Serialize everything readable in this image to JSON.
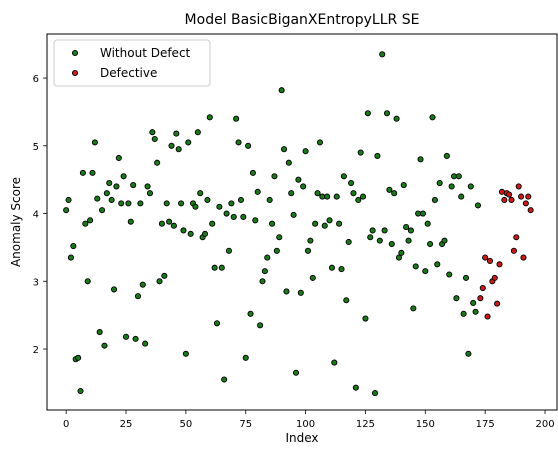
{
  "chart_data": {
    "type": "scatter",
    "title": "Model BasicBiganXEntropyLLR SE",
    "xlabel": "Index",
    "ylabel": "Anomaly Score",
    "xlim": [
      -8,
      205
    ],
    "ylim": [
      1.1,
      6.65
    ],
    "xticks": [
      0,
      25,
      50,
      75,
      100,
      125,
      150,
      175,
      200
    ],
    "yticks": [
      2,
      3,
      4,
      5,
      6
    ],
    "grid": false,
    "legend_position": "top-left",
    "series": [
      {
        "name": "Without Defect",
        "color": "#1a7a1a",
        "points": [
          [
            0,
            4.05
          ],
          [
            1,
            4.2
          ],
          [
            2,
            3.35
          ],
          [
            3,
            3.52
          ],
          [
            4,
            1.85
          ],
          [
            5,
            1.87
          ],
          [
            6,
            1.38
          ],
          [
            7,
            4.6
          ],
          [
            8,
            3.85
          ],
          [
            9,
            3.0
          ],
          [
            10,
            3.9
          ],
          [
            11,
            4.6
          ],
          [
            12,
            5.05
          ],
          [
            13,
            4.22
          ],
          [
            14,
            2.25
          ],
          [
            15,
            4.05
          ],
          [
            16,
            2.05
          ],
          [
            17,
            4.3
          ],
          [
            18,
            4.45
          ],
          [
            19,
            4.2
          ],
          [
            20,
            2.88
          ],
          [
            21,
            4.4
          ],
          [
            22,
            4.82
          ],
          [
            23,
            4.15
          ],
          [
            24,
            4.55
          ],
          [
            25,
            2.18
          ],
          [
            26,
            4.15
          ],
          [
            27,
            3.88
          ],
          [
            28,
            4.42
          ],
          [
            29,
            2.15
          ],
          [
            30,
            2.78
          ],
          [
            31,
            4.15
          ],
          [
            32,
            2.95
          ],
          [
            33,
            2.08
          ],
          [
            34,
            4.4
          ],
          [
            35,
            4.3
          ],
          [
            36,
            5.2
          ],
          [
            37,
            5.1
          ],
          [
            38,
            4.75
          ],
          [
            39,
            3.0
          ],
          [
            40,
            3.85
          ],
          [
            41,
            3.08
          ],
          [
            42,
            4.15
          ],
          [
            43,
            3.88
          ],
          [
            44,
            5.0
          ],
          [
            45,
            3.82
          ],
          [
            46,
            5.18
          ],
          [
            47,
            4.95
          ],
          [
            48,
            4.15
          ],
          [
            49,
            3.75
          ],
          [
            50,
            1.93
          ],
          [
            51,
            5.05
          ],
          [
            52,
            3.7
          ],
          [
            53,
            4.15
          ],
          [
            54,
            4.1
          ],
          [
            55,
            5.2
          ],
          [
            56,
            4.3
          ],
          [
            57,
            3.65
          ],
          [
            58,
            3.7
          ],
          [
            59,
            4.2
          ],
          [
            60,
            5.42
          ],
          [
            61,
            3.85
          ],
          [
            62,
            3.2
          ],
          [
            63,
            2.38
          ],
          [
            64,
            4.1
          ],
          [
            65,
            3.2
          ],
          [
            66,
            1.55
          ],
          [
            67,
            4.0
          ],
          [
            68,
            3.45
          ],
          [
            69,
            4.15
          ],
          [
            70,
            3.95
          ],
          [
            71,
            5.4
          ],
          [
            72,
            5.05
          ],
          [
            73,
            4.2
          ],
          [
            74,
            3.95
          ],
          [
            75,
            1.87
          ],
          [
            76,
            5.0
          ],
          [
            77,
            2.52
          ],
          [
            78,
            4.6
          ],
          [
            79,
            3.9
          ],
          [
            80,
            4.32
          ],
          [
            81,
            2.35
          ],
          [
            82,
            3.0
          ],
          [
            83,
            3.15
          ],
          [
            84,
            3.35
          ],
          [
            85,
            4.2
          ],
          [
            86,
            3.85
          ],
          [
            87,
            4.55
          ],
          [
            88,
            3.45
          ],
          [
            89,
            3.65
          ],
          [
            90,
            5.82
          ],
          [
            91,
            4.95
          ],
          [
            92,
            2.85
          ],
          [
            93,
            4.75
          ],
          [
            94,
            4.3
          ],
          [
            95,
            3.98
          ],
          [
            96,
            1.65
          ],
          [
            97,
            4.5
          ],
          [
            98,
            2.83
          ],
          [
            99,
            4.4
          ],
          [
            100,
            4.92
          ],
          [
            101,
            3.45
          ],
          [
            102,
            3.6
          ],
          [
            103,
            3.05
          ],
          [
            104,
            3.85
          ],
          [
            105,
            4.3
          ],
          [
            106,
            5.05
          ],
          [
            107,
            4.25
          ],
          [
            108,
            3.82
          ],
          [
            109,
            4.25
          ],
          [
            110,
            3.9
          ],
          [
            111,
            3.2
          ],
          [
            112,
            1.8
          ],
          [
            113,
            4.25
          ],
          [
            114,
            3.85
          ],
          [
            115,
            3.18
          ],
          [
            116,
            4.55
          ],
          [
            117,
            2.72
          ],
          [
            118,
            3.58
          ],
          [
            119,
            4.45
          ],
          [
            120,
            4.3
          ],
          [
            121,
            1.43
          ],
          [
            122,
            4.2
          ],
          [
            123,
            4.9
          ],
          [
            124,
            4.25
          ],
          [
            125,
            2.45
          ],
          [
            126,
            5.48
          ],
          [
            127,
            3.65
          ],
          [
            128,
            3.75
          ],
          [
            129,
            1.35
          ],
          [
            130,
            4.85
          ],
          [
            131,
            3.6
          ],
          [
            132,
            6.35
          ],
          [
            133,
            3.75
          ],
          [
            134,
            5.48
          ],
          [
            135,
            4.35
          ],
          [
            136,
            3.55
          ],
          [
            137,
            4.3
          ],
          [
            138,
            5.4
          ],
          [
            139,
            3.35
          ],
          [
            140,
            3.42
          ],
          [
            141,
            4.42
          ],
          [
            142,
            3.8
          ],
          [
            143,
            3.6
          ],
          [
            144,
            3.75
          ],
          [
            145,
            2.6
          ],
          [
            146,
            3.22
          ],
          [
            147,
            4.0
          ],
          [
            148,
            4.8
          ],
          [
            149,
            4.0
          ],
          [
            150,
            3.15
          ],
          [
            151,
            3.85
          ],
          [
            152,
            3.55
          ],
          [
            153,
            5.42
          ],
          [
            154,
            4.2
          ],
          [
            155,
            3.25
          ],
          [
            156,
            4.45
          ],
          [
            157,
            3.55
          ],
          [
            158,
            3.6
          ],
          [
            159,
            4.85
          ],
          [
            160,
            3.1
          ],
          [
            161,
            4.4
          ],
          [
            162,
            4.55
          ],
          [
            163,
            2.75
          ],
          [
            164,
            4.55
          ],
          [
            165,
            4.25
          ],
          [
            166,
            2.52
          ],
          [
            167,
            3.05
          ],
          [
            168,
            1.93
          ],
          [
            169,
            4.4
          ],
          [
            170,
            2.68
          ],
          [
            171,
            2.55
          ],
          [
            172,
            4.12
          ]
        ]
      },
      {
        "name": "Defective",
        "color": "#cc1a1a",
        "points": [
          [
            173,
            2.75
          ],
          [
            174,
            2.9
          ],
          [
            175,
            3.35
          ],
          [
            176,
            2.48
          ],
          [
            177,
            3.3
          ],
          [
            178,
            3.0
          ],
          [
            179,
            3.05
          ],
          [
            180,
            2.67
          ],
          [
            181,
            3.25
          ],
          [
            182,
            4.32
          ],
          [
            183,
            4.2
          ],
          [
            184,
            4.3
          ],
          [
            185,
            4.28
          ],
          [
            186,
            4.2
          ],
          [
            187,
            3.45
          ],
          [
            188,
            3.65
          ],
          [
            189,
            4.4
          ],
          [
            190,
            4.25
          ],
          [
            191,
            3.35
          ],
          [
            192,
            4.15
          ],
          [
            193,
            4.25
          ],
          [
            194,
            4.05
          ]
        ]
      }
    ]
  }
}
